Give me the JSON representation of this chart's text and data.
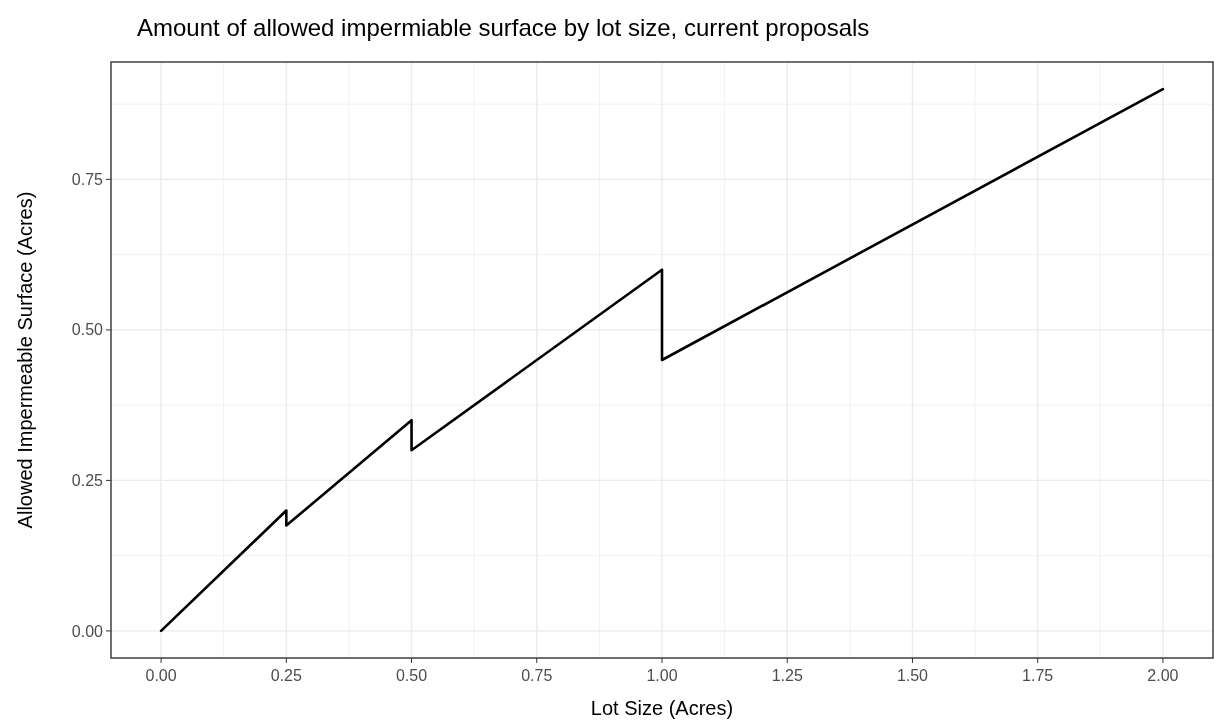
{
  "chart_data": {
    "type": "line",
    "title": "Amount of allowed impermiable surface by lot size, current proposals",
    "xlabel": "Lot Size (Acres)",
    "ylabel": "Allowed Impermeable Surface (Acres)",
    "series": [
      {
        "color": "#000000",
        "x": [
          0,
          0.25,
          0.25,
          0.5,
          0.5,
          1,
          1,
          2
        ],
        "values": [
          0,
          0.2,
          0.175,
          0.35,
          0.3,
          0.6,
          0.45,
          0.9
        ]
      }
    ],
    "xlim": [
      -0.1,
      2.1
    ],
    "xticks": [
      {
        "value": 0,
        "label": "0.00"
      },
      {
        "value": 0.25,
        "label": "0.25"
      },
      {
        "value": 0.5,
        "label": "0.50"
      },
      {
        "value": 0.75,
        "label": "0.75"
      },
      {
        "value": 1,
        "label": "1.00"
      },
      {
        "value": 1.25,
        "label": "1.25"
      },
      {
        "value": 1.5,
        "label": "1.50"
      },
      {
        "value": 1.75,
        "label": "1.75"
      },
      {
        "value": 2,
        "label": "2.00"
      }
    ],
    "ylim": [
      -0.045,
      0.945
    ],
    "yticks": [
      {
        "value": 0,
        "label": "0.00"
      },
      {
        "value": 0.25,
        "label": "0.25"
      },
      {
        "value": 0.5,
        "label": "0.50"
      },
      {
        "value": 0.75,
        "label": "0.75"
      }
    ],
    "grid": true,
    "marker": "none",
    "line_style": "solid"
  }
}
